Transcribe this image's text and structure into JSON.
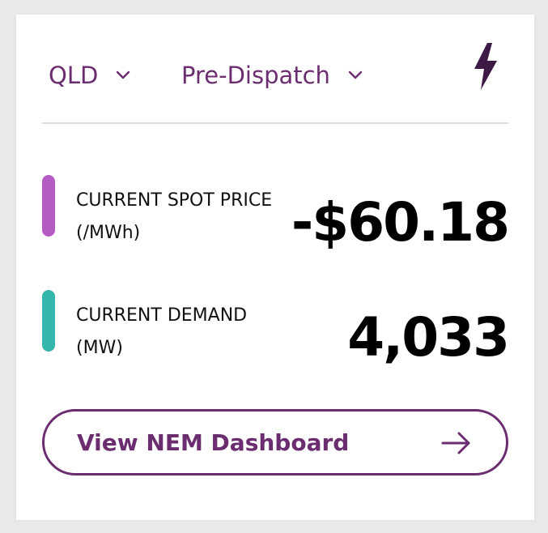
{
  "header": {
    "region": "QLD",
    "mode": "Pre-Dispatch"
  },
  "metrics": [
    {
      "label_line1": "CURRENT SPOT PRICE",
      "label_line2": "(/MWh)",
      "value": "-$60.18",
      "color": "#b55bc4"
    },
    {
      "label_line1": "CURRENT DEMAND",
      "label_line2": "(MW)",
      "value": "4,033",
      "color": "#35b5ad"
    }
  ],
  "cta": {
    "label": "View NEM Dashboard"
  },
  "colors": {
    "brand": "#6b2d6f",
    "bolt": "#3d1a45"
  },
  "icons": {
    "chevron": "chevron-down-icon",
    "bolt": "lightning-bolt-icon",
    "arrow": "arrow-right-icon"
  }
}
